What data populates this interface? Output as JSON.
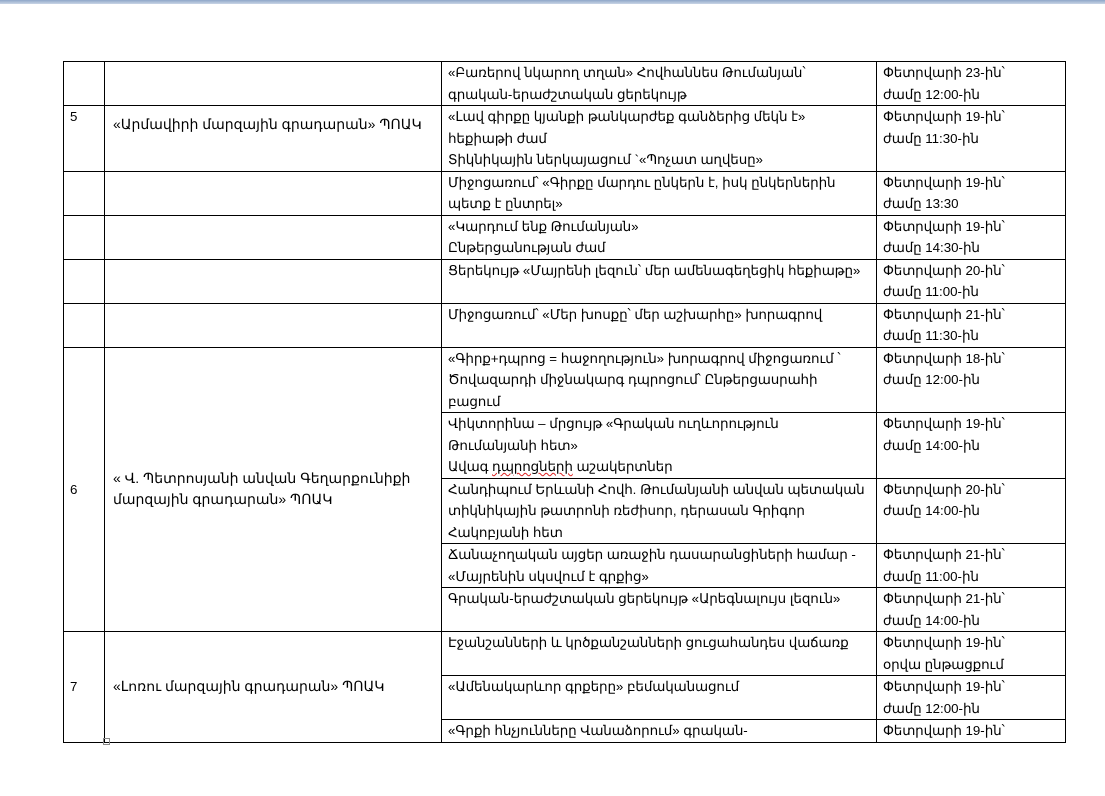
{
  "rows": [
    {
      "num": "",
      "org": "",
      "event": "«Բառերով նկարող տղան»  Հովհաննես Թումանյան՝ գրական-երաժշտական ցերեկույթ",
      "date": "Փետրվարի 23-ին՝",
      "time": "ժամը 12:00-ին"
    },
    {
      "num": "5",
      "org": "«Արմավիրի մարզային գրադարան» ՊՈԱԿ",
      "event": " «Լավ  գիրքը կյանքի թանկարժեք  գանձերից  մեկն է» հեքիաթի ժամ",
      "event2": "Տիկնիկային ներկայացում `«Պոչատ աղվեսը»",
      "date": "Փետրվարի 19-ին՝",
      "time": "ժամը 11:30-ին"
    },
    {
      "num": "",
      "org": "",
      "event": "Միջոցառում՝ «Գիրքը մարդու ընկերն է, իսկ ընկերներին պետք է ընտրել»",
      "date": "Փետրվարի 19-ին՝",
      "time": "ժամը 13:30"
    },
    {
      "num": "",
      "org": "",
      "event": "«Կարդում  ենք  Թումանյան»",
      "event2": "Ընթերցանության ժամ",
      "date": "Փետրվարի 19-ին՝",
      "time": "ժամը 14:30-ին"
    },
    {
      "num": "",
      "org": "",
      "event": "Ցերեկույթ «Մայրենի  լեզուն՝ մեր ամենագեղեցիկ հեքիաթը»",
      "date": "Փետրվարի 20-ին՝",
      "time": "ժամը 11:00-ին"
    },
    {
      "num": "",
      "org": "",
      "event": "Միջոցառում՝ «Մեր խոսքը՝ մեր  աշխարհը»  խորագրով",
      "date": "Փետրվարի 21-ին՝",
      "time": "ժամը 11:30-ին"
    }
  ],
  "group6": {
    "num": "6",
    "org": "« Վ. Պետրոսյանի անվան Գեղարքունիքի մարզային գրադարան» ՊՈԱԿ",
    "rows": [
      {
        "event": "«Գիրք+դպրոց = հաջողություն» խորագրով միջոցառում ՝ Ծովազարդի միջնակարգ դպրոցում՝ Ընթերցասրահի բացում",
        "date": "Փետրվարի 18-ին՝",
        "time": "ժամը 12:00-ին"
      },
      {
        "event": "Վիկտորինա – մրցույթ «Գրական ուղևորություն Թումանյանի հետ»",
        "event2a": "Ավագ ",
        "event2b": "դպրոցների",
        "event2c": " աշակերտներ",
        "date": "Փետրվարի 19-ին՝",
        "time": "ժամը 14:00-ին"
      },
      {
        "event": "Հանդիպում Երևանի Հովհ. Թումանյանի անվան պետական տիկնիկային թատրոնի ռեժիսոր, դերասան Գրիգոր Հակոբյանի հետ",
        "date": "Փետրվարի 20-ին՝",
        "time": "ժամը 14:00-ին"
      },
      {
        "event": "Ճանաչողական այցեր առաջին դասարանցիների համար  - «Մայրենին սկսվում է գրքից»",
        "date": "Փետրվարի 21-ին՝",
        "time": "ժամը 11:00-ին"
      },
      {
        "event": "Գրական-երաժշտական ցերեկույթ «Արեգնալույս լեզուն»",
        "date": "Փետրվարի 21-ին՝",
        "time": "ժամը 14:00-ին"
      }
    ]
  },
  "group7": {
    "num": "7",
    "org": "«Լոռու մարզային գրադարան» ՊՈԱԿ",
    "rows": [
      {
        "event": "Էջանշանների և կրծքանշանների ցուցահանդես վաճառք",
        "date": "Փետրվարի 19-ին՝",
        "time": "օրվա ընթացքում"
      },
      {
        "event": "«Ամենակարևոր գրքերը» բեմականացում",
        "date": "Փետրվարի 19-ին՝",
        "time": "ժամը 12:00-ին"
      },
      {
        "event": "«Գրքի հնչյունները Վանաձորում» գրական-",
        "date": "Փետրվարի 19-ին՝",
        "time": ""
      }
    ]
  }
}
